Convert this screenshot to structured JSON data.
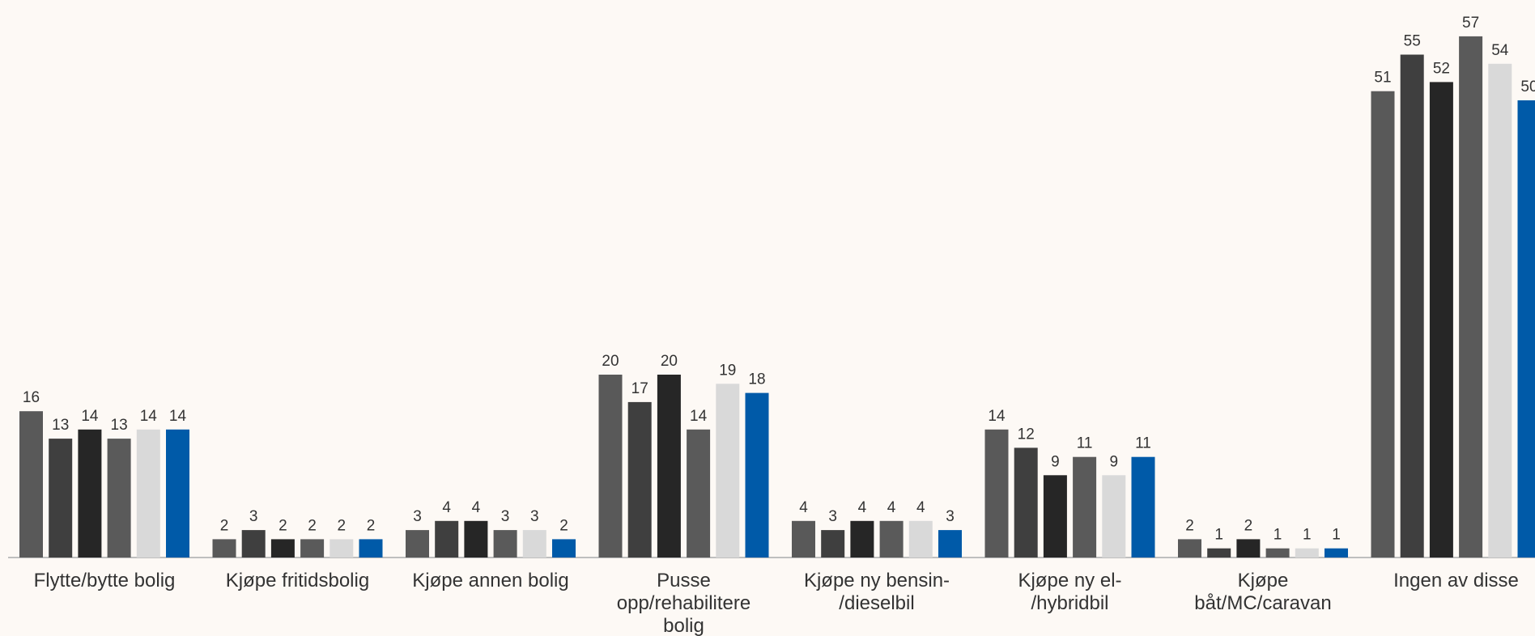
{
  "chart_data": {
    "type": "bar",
    "categories": [
      [
        "Flytte/bytte bolig"
      ],
      [
        "Kjøpe fritidsbolig"
      ],
      [
        "Kjøpe annen bolig"
      ],
      [
        "Pusse",
        "opp/rehabilitere",
        "bolig"
      ],
      [
        "Kjøpe ny bensin-",
        "/dieselbil"
      ],
      [
        "Kjøpe ny el-",
        "/hybridbil"
      ],
      [
        "Kjøpe",
        "båt/MC/caravan"
      ],
      [
        "Ingen av disse"
      ]
    ],
    "series": [
      {
        "color": "#595959",
        "values": [
          16,
          2,
          3,
          20,
          4,
          14,
          2,
          51
        ]
      },
      {
        "color": "#3f3f3f",
        "values": [
          13,
          3,
          4,
          17,
          3,
          12,
          1,
          55
        ]
      },
      {
        "color": "#262626",
        "values": [
          14,
          2,
          4,
          20,
          4,
          9,
          2,
          52
        ]
      },
      {
        "color": "#5a5a5a",
        "values": [
          13,
          2,
          3,
          14,
          4,
          11,
          1,
          57
        ]
      },
      {
        "color": "#d9d9d9",
        "values": [
          14,
          2,
          3,
          19,
          4,
          9,
          1,
          54
        ]
      },
      {
        "color": "#005aa8",
        "values": [
          14,
          2,
          2,
          18,
          3,
          11,
          1,
          50
        ]
      }
    ],
    "ylim": [
      0,
      57
    ],
    "grid": false,
    "legend": "none",
    "data_labels": true
  }
}
